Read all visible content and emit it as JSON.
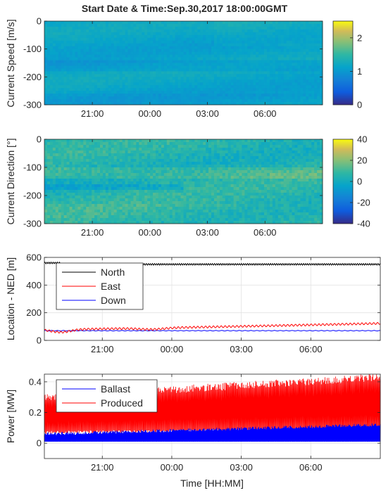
{
  "title": "Start Date & Time:Sep.30,2017 18:00:00GMT",
  "xlabel": "Time [HH:MM]",
  "x_ticks": [
    "21:00",
    "00:00",
    "03:00",
    "06:00"
  ],
  "chart_data": [
    {
      "type": "heatmap",
      "ylabel": "Current Speed [m/s]",
      "xlim_hours": [
        0,
        14.5
      ],
      "x_ticks": [
        "21:00",
        "00:00",
        "03:00",
        "06:00"
      ],
      "ylim": [
        -300,
        0
      ],
      "y_ticks": [
        "0",
        "-100",
        "-200",
        "-300"
      ],
      "colorbar": {
        "min": 0,
        "max": 2.5,
        "ticks": [
          "2",
          "1",
          "0"
        ]
      },
      "colormap": "parula",
      "description_values": {
        "typical": 1.1,
        "range": [
          0.8,
          1.4
        ]
      }
    },
    {
      "type": "heatmap",
      "ylabel": "Current Direction [°]",
      "xlim_hours": [
        0,
        14.5
      ],
      "x_ticks": [
        "21:00",
        "00:00",
        "03:00",
        "06:00"
      ],
      "ylim": [
        -300,
        0
      ],
      "y_ticks": [
        "0",
        "-100",
        "-200",
        "-300"
      ],
      "colorbar": {
        "min": -40,
        "max": 40,
        "ticks": [
          "40",
          "20",
          "0",
          "-20",
          "-40"
        ]
      },
      "colormap": "parula",
      "description_values": {
        "typical": 5,
        "range": [
          -5,
          20
        ]
      }
    },
    {
      "type": "line",
      "ylabel": "Location - NED [m]",
      "x_ticks": [
        "21:00",
        "00:00",
        "03:00",
        "06:00"
      ],
      "ylim": [
        0,
        600
      ],
      "y_ticks": [
        "600",
        "400",
        "200",
        "0"
      ],
      "grid": true,
      "legend_position": "top-left",
      "series": [
        {
          "name": "North",
          "color": "#000000",
          "mean": 550,
          "amplitude": 6
        },
        {
          "name": "East",
          "color": "#ff0000",
          "start": 75,
          "end": 120,
          "amplitude": 10
        },
        {
          "name": "Down",
          "color": "#0000ff",
          "mean": 70,
          "amplitude": 2
        }
      ]
    },
    {
      "type": "line",
      "ylabel": "Power [MW]",
      "x_ticks": [
        "21:00",
        "00:00",
        "03:00",
        "06:00"
      ],
      "ylim": [
        -0.1,
        0.45
      ],
      "y_ticks": [
        "0.4",
        "0.2",
        "0"
      ],
      "grid": true,
      "legend_position": "top-left",
      "series": [
        {
          "name": "Ballast",
          "color": "#0000ff",
          "min": 0.01,
          "max_start": 0.06,
          "max_end": 0.12
        },
        {
          "name": "Produced",
          "color": "#ff0000",
          "min_start": 0.08,
          "min_end": 0.1,
          "max_start": 0.3,
          "max_end": 0.43
        }
      ]
    }
  ]
}
